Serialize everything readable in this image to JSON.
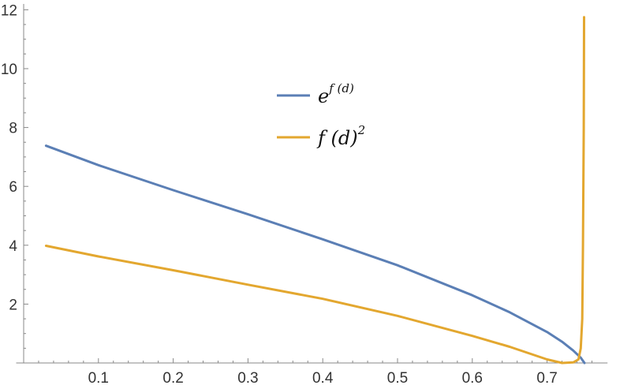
{
  "chart_data": {
    "type": "line",
    "title": "",
    "xlabel": "",
    "ylabel": "",
    "xlim": [
      -0.01,
      0.765
    ],
    "ylim": [
      -0.05,
      12.3
    ],
    "grid": false,
    "legend_position": "center-top",
    "x_ticks": [
      0.1,
      0.2,
      0.3,
      0.4,
      0.5,
      0.6,
      0.7
    ],
    "x_tick_labels": [
      "0.1",
      "0.2",
      "0.3",
      "0.4",
      "0.5",
      "0.6",
      "0.7"
    ],
    "y_ticks": [
      2,
      4,
      6,
      8,
      10,
      12
    ],
    "y_tick_labels": [
      "2",
      "4",
      "6",
      "8",
      "10",
      "12"
    ],
    "series": [
      {
        "name": "e^{f(d)}",
        "legend_base": "e",
        "legend_sup": "f (d)",
        "color": "#5b7fb5",
        "points": [
          [
            0.03,
            7.38
          ],
          [
            0.1,
            6.72
          ],
          [
            0.2,
            5.87
          ],
          [
            0.3,
            5.05
          ],
          [
            0.4,
            4.2
          ],
          [
            0.5,
            3.32
          ],
          [
            0.6,
            2.3
          ],
          [
            0.65,
            1.72
          ],
          [
            0.7,
            1.05
          ],
          [
            0.72,
            0.72
          ],
          [
            0.735,
            0.42
          ],
          [
            0.745,
            0.18
          ],
          [
            0.75,
            0.0
          ]
        ]
      },
      {
        "name": "f(d)^2",
        "legend_base": "f (d)",
        "legend_sup": "2",
        "color": "#e3a72f",
        "points": [
          [
            0.03,
            3.98
          ],
          [
            0.1,
            3.62
          ],
          [
            0.2,
            3.15
          ],
          [
            0.3,
            2.66
          ],
          [
            0.4,
            2.18
          ],
          [
            0.5,
            1.6
          ],
          [
            0.6,
            0.92
          ],
          [
            0.65,
            0.55
          ],
          [
            0.7,
            0.12
          ],
          [
            0.72,
            0.0
          ],
          [
            0.735,
            0.02
          ],
          [
            0.742,
            0.12
          ],
          [
            0.745,
            0.5
          ],
          [
            0.747,
            1.5
          ],
          [
            0.748,
            4.0
          ],
          [
            0.749,
            8.0
          ],
          [
            0.7495,
            11.75
          ]
        ]
      }
    ]
  }
}
